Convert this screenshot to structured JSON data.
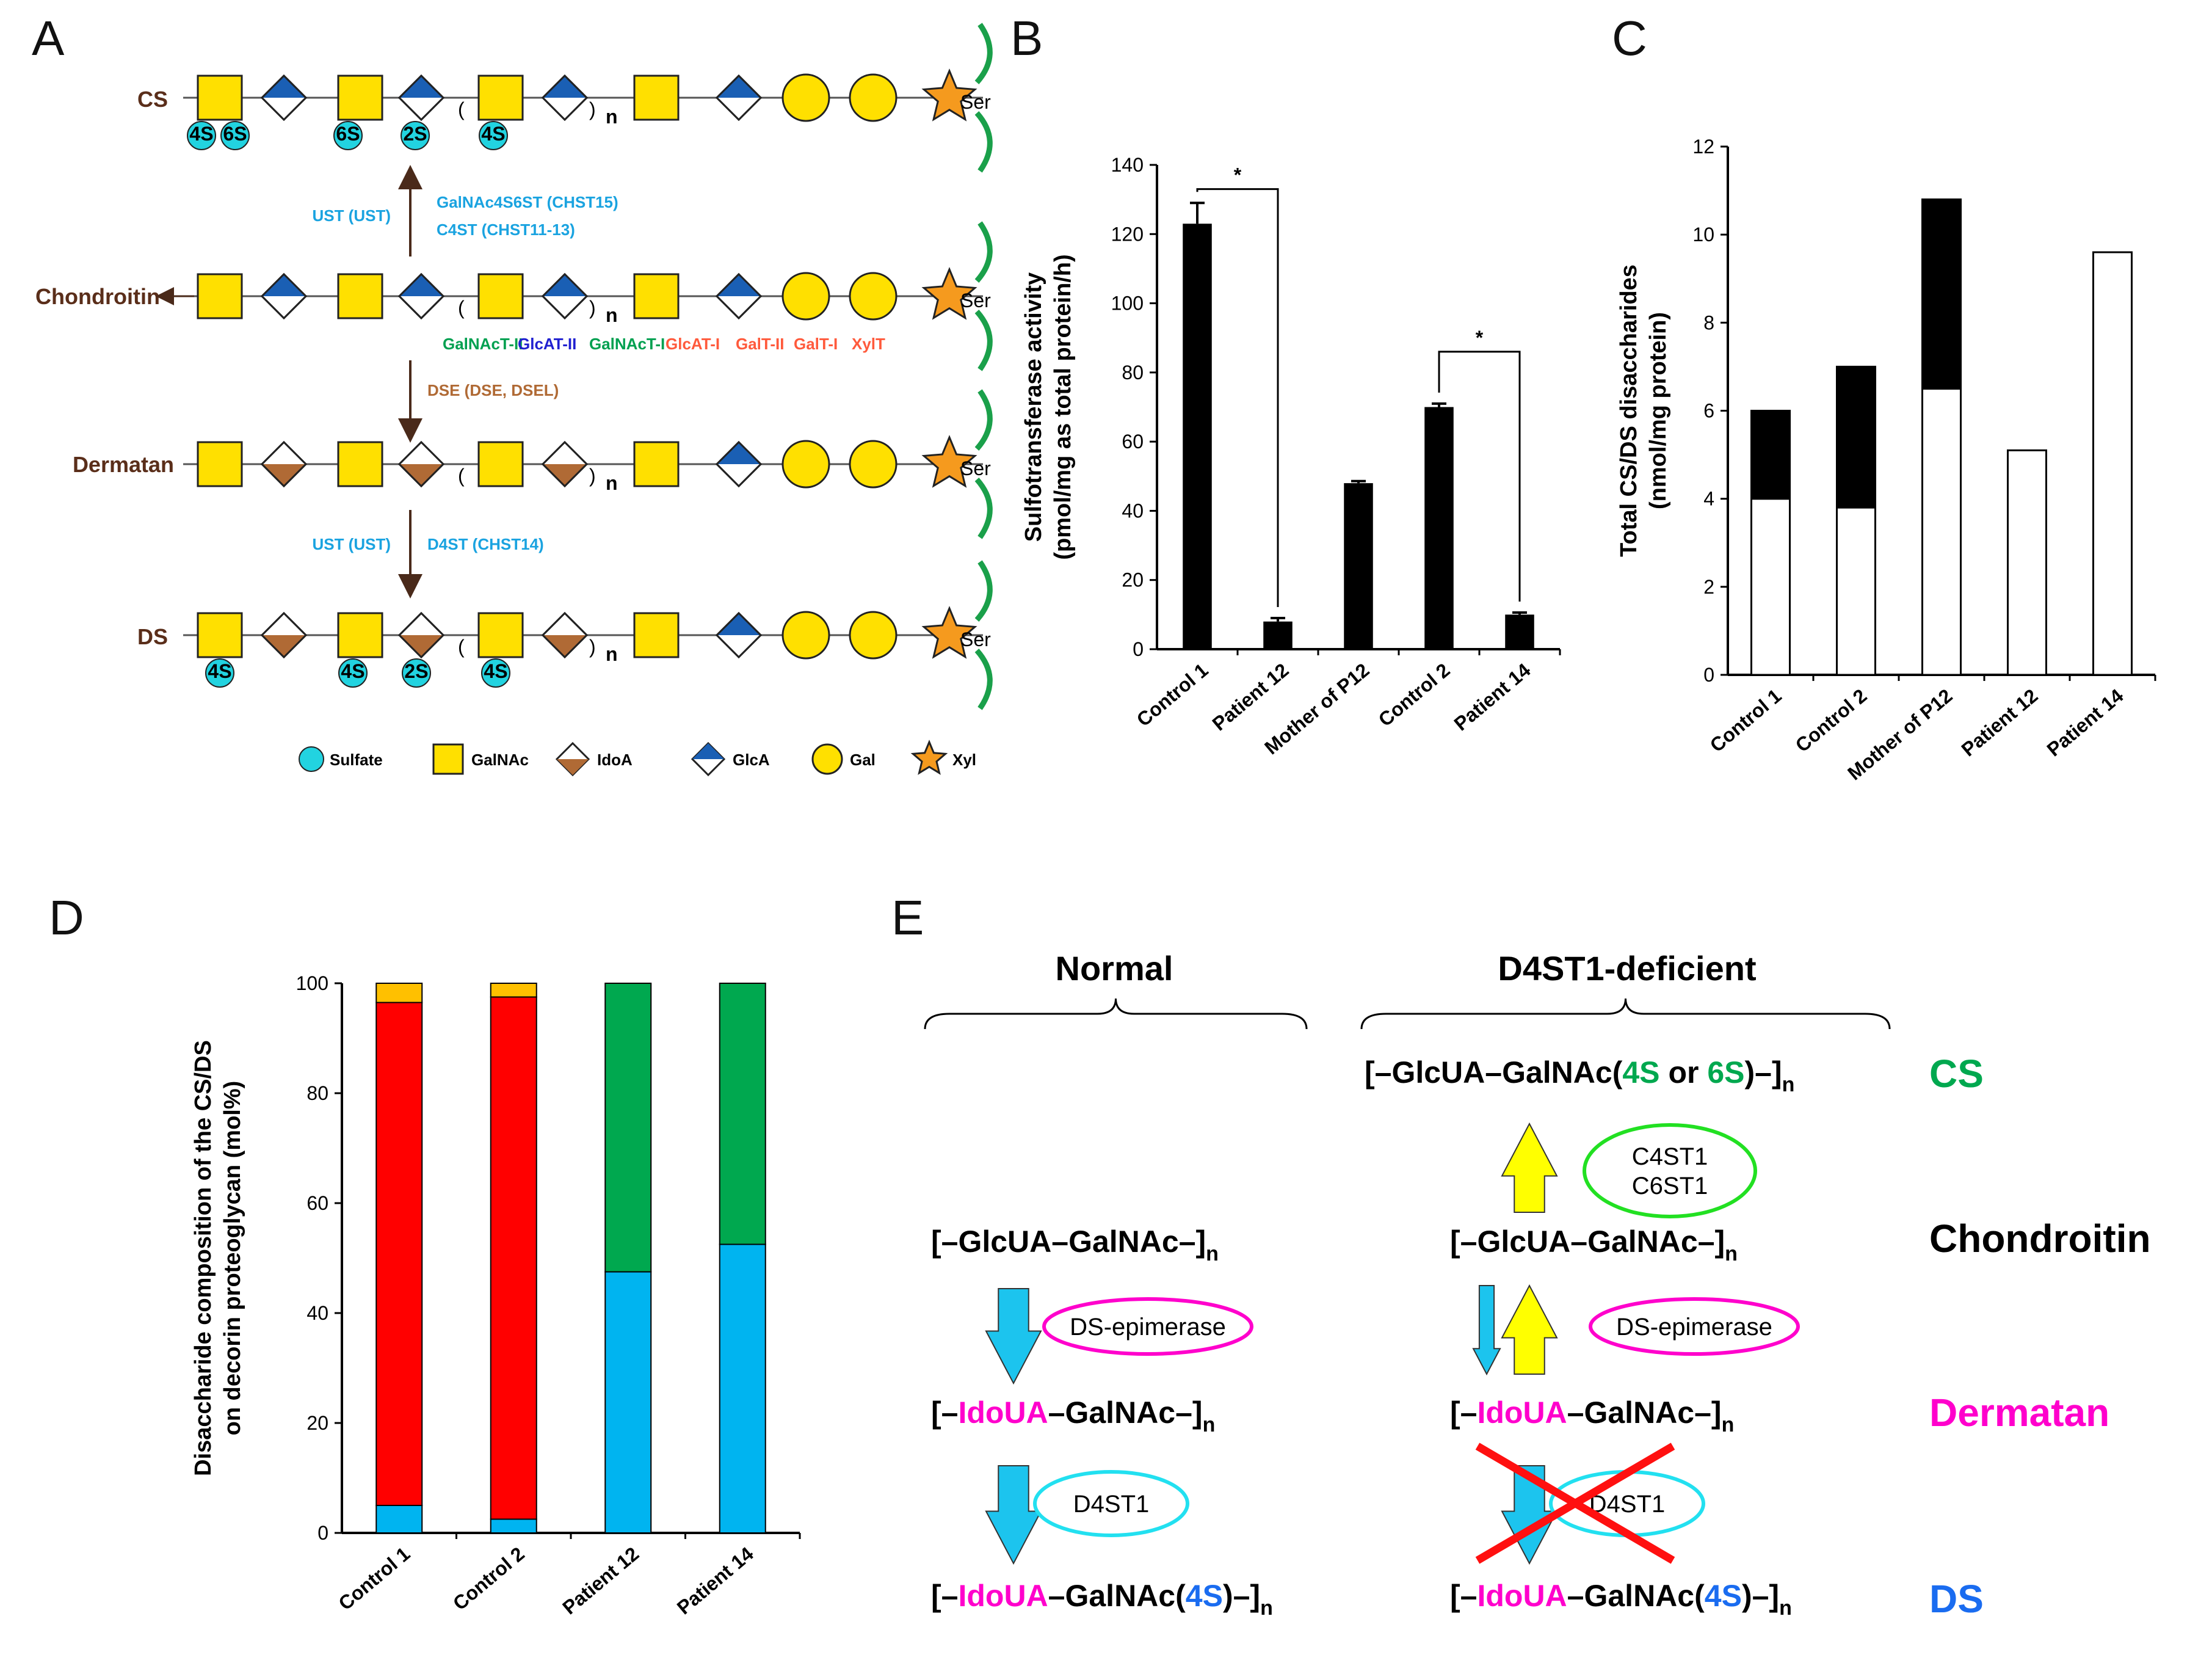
{
  "panels": {
    "a": "A",
    "b": "B",
    "c": "C",
    "d": "D",
    "e": "E"
  },
  "panel_a": {
    "chain_labels": [
      "CS",
      "Chondroitin",
      "Dermatan",
      "DS"
    ],
    "ser": "Ser",
    "n": "n",
    "sulfates": {
      "s4": "4S",
      "s6": "6S",
      "s2": "2S"
    },
    "arrow1": {
      "left": "UST (UST)",
      "right1": "GalNAc4S6ST (CHST15)",
      "right2": "C4ST (CHST11-13)"
    },
    "enzymes": [
      "GalNAcT-II",
      "GlcAT-II",
      "GalNAcT-I",
      "GlcAT-I",
      "GalT-II",
      "GalT-I",
      "XylT"
    ],
    "enzyme_colors": [
      "#00a050",
      "#2020d0",
      "#00a050",
      "#ff5a3c",
      "#ff5a3c",
      "#ff5a3c",
      "#ff5a3c"
    ],
    "arrow2": "DSE (DSE, DSEL)",
    "arrow3": {
      "left": "UST (UST)",
      "right": "D4ST (CHST14)"
    },
    "legend": [
      "Sulfate",
      "GalNAc",
      "IdoA",
      "GlcA",
      "Gal",
      "Xyl"
    ],
    "colors": {
      "galnac": "#ffe000",
      "glca": "#1a5fb4",
      "idoa": "#b06a35",
      "gal": "#ffe000",
      "xyl": "#f59a1e",
      "sulfate": "#22d3e0",
      "ser_bracket": "#1aa04a"
    }
  },
  "chart_data": [
    {
      "id": "B",
      "type": "bar",
      "categories": [
        "Control 1",
        "Patient 12",
        "Mother of P12",
        "Control 2",
        "Patient 14"
      ],
      "values": [
        123,
        8,
        48,
        70,
        10
      ],
      "errors": [
        6,
        1,
        0.6,
        1,
        0.6
      ],
      "ylabel_line1": "Sulfotransferase activity",
      "ylabel_line2": "(pmol/mg as total protein/h)",
      "ylim": [
        0,
        140
      ],
      "yticks": [
        "0",
        "20",
        "40",
        "60",
        "80",
        "100",
        "120",
        "140"
      ],
      "significance": [
        {
          "between": [
            "Control 1",
            "Patient 12"
          ],
          "mark": "*"
        },
        {
          "between": [
            "Control 2",
            "Patient 14"
          ],
          "mark": "*"
        }
      ],
      "bar_color": "#000000"
    },
    {
      "id": "C",
      "type": "bar",
      "stacked": true,
      "categories": [
        "Control 1",
        "Control 2",
        "Mother of P12",
        "Patient 12",
        "Patient 14"
      ],
      "series": [
        {
          "name": "white",
          "color": "#ffffff",
          "values": [
            4.0,
            3.8,
            6.5,
            5.1,
            9.6
          ]
        },
        {
          "name": "black",
          "color": "#000000",
          "values": [
            2.0,
            3.2,
            4.3,
            0,
            0
          ]
        }
      ],
      "ylabel_line1": "Total CS/DS disaccharides",
      "ylabel_line2": "(nmol/mg protein)",
      "ylim": [
        0,
        12
      ],
      "yticks": [
        "0",
        "2",
        "4",
        "6",
        "8",
        "10",
        "12"
      ]
    },
    {
      "id": "D",
      "type": "bar",
      "stacked": true,
      "categories": [
        "Control 1",
        "Control 2",
        "Patient 12",
        "Patient 14"
      ],
      "series": [
        {
          "name": "blue",
          "color": "#00b4f0",
          "values": [
            5,
            2.5,
            47.5,
            52.5
          ]
        },
        {
          "name": "green",
          "color": "#00a84f",
          "values": [
            0,
            0,
            52.5,
            47.5
          ]
        },
        {
          "name": "red",
          "color": "#ff0000",
          "values": [
            91.5,
            95,
            0,
            0
          ]
        },
        {
          "name": "orange",
          "color": "#ffc000",
          "values": [
            3.5,
            2.5,
            0,
            0
          ]
        }
      ],
      "ylabel_line1": "Disaccharide composition of the CS/DS",
      "ylabel_line2": "on decorin proteoglycan (mol%)",
      "ylim": [
        0,
        100
      ],
      "yticks": [
        "0",
        "20",
        "40",
        "60",
        "80",
        "100"
      ]
    }
  ],
  "panel_e": {
    "normal": "Normal",
    "deficient": "D4ST1-deficient",
    "right_labels": [
      {
        "text": "CS",
        "color": "#00a84f"
      },
      {
        "text": "Chondroitin",
        "color": "#000000"
      },
      {
        "text": "Dermatan",
        "color": "#ff00cc"
      },
      {
        "text": "DS",
        "color": "#1a6cf0"
      }
    ],
    "t_open": "[–",
    "t_close": "–]",
    "t_sub": "n",
    "t_glcua": "GlcUA",
    "t_idoua": "IdoUA",
    "t_galnac": "–GalNAc",
    "t_galnac_only": "–GalNAc–",
    "t_paren_open": "(",
    "t_paren_close": ")",
    "t_or": " or ",
    "t_4s": "4S",
    "t_6s": "6S",
    "enz_c4": "C4ST1",
    "enz_c6": "C6ST1",
    "enz_dse": "DS-epimerase",
    "enz_d4": "D4ST1",
    "colors": {
      "idoua": "#ff00cc",
      "s_cs": "#00a84f",
      "s_ds": "#1a6cf0",
      "arrow_down": "#1cc4ee",
      "arrow_up": "#ffff00",
      "ell_c": "#22e022",
      "ell_dse": "#ff00cc",
      "ell_d4": "#22e0f0",
      "cross": "#ff1010"
    }
  }
}
